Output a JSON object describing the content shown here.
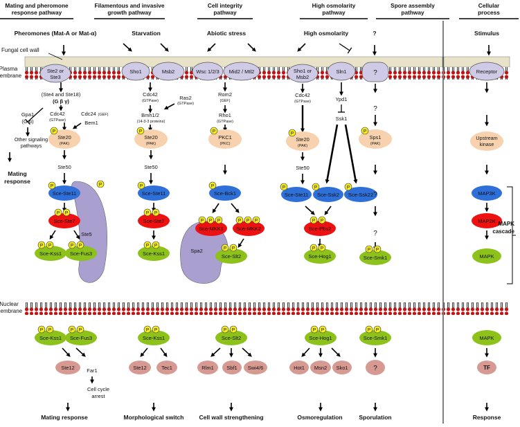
{
  "headers": [
    "Mating and pheromone response pathway",
    "Filamentous and invasive growth pathway",
    "Cell  integrity pathway",
    "High osmolarity pathway",
    "Spore assembly pathway",
    "Cellular process"
  ],
  "stimuli": [
    "Pheromones (Mat-A or Mat-α)",
    "Starvation",
    "Abiotic stress",
    "High osmolarity",
    "?",
    "Stimulus"
  ],
  "left_labels": {
    "cell_wall": "Fungal cell wall",
    "plasma": [
      "Plasma",
      "membrane"
    ],
    "nuclear": [
      "Nuclear",
      "membrane"
    ],
    "mating_resp": [
      "Mating",
      "response"
    ]
  },
  "receptors": {
    "ste2": [
      "Ste2  or",
      "Ste3"
    ],
    "sho1": "Sho1",
    "msb2": "Msb2",
    "wsc": "Wsc 1/2/3",
    "mid2": "Mid2 / Mtl2",
    "sho1b": [
      "Sho1 or",
      "Msb2"
    ],
    "sln1": "Sln1",
    "q": "?",
    "receptor": "Receptor"
  },
  "c1": {
    "ste4": "(Ste4 and Ste18)",
    "gby": "(G β γ)",
    "gpa1": "Gpa1",
    "ga": "(G α)",
    "cdc42": "Cdc42",
    "gtpase": "(GTPase)",
    "cdc24": "Cdc24",
    "gef": "(GEF)",
    "bem1": "Bem1",
    "ste20": "Ste20",
    "pak": "(PAK)",
    "other": [
      "Other signaling",
      "pathways"
    ],
    "ste50": "Ste50",
    "ste11": "Sce-Ste11",
    "ste7": "Sce-Ste7",
    "ste5": "Ste5",
    "kss1": "Sce-Kss1",
    "fus3": "Sce-Fus3",
    "kss1n": "Sce-Kss1",
    "fus3n": "Sce-Fus3",
    "ste12": "Ste12",
    "far1": "Far1",
    "arrest": [
      "Cell cycle",
      "arrest"
    ],
    "out": "Mating response"
  },
  "c2": {
    "cdc42": "Cdc42",
    "gtpase": "(GTPase)",
    "ras2": "Ras2",
    "ras_gtp": "(GTPase)",
    "bmh": "Bmh1/2",
    "bmh_sub": "(14-3-3 proteins)",
    "ste20": "Ste20",
    "pak": "(PAK)",
    "ste50": "Ste50",
    "ste11": "Sce-Ste11",
    "ste7": "Sce-Ste7",
    "kss1": "Sce-Kss1",
    "kss1n": "Sce-Kss1",
    "ste12": "Ste12",
    "tec1": "Tec1",
    "out": "Morphological switch"
  },
  "c3": {
    "rom2": "Rom2",
    "gef": "(GEF)",
    "rho1": "Rho1",
    "gtpase": "(GTPase)",
    "pkc1": "PKC1",
    "pkc": "(PKC)",
    "bck1": "Sce-Bck1",
    "mkk1": "Sce-MKK1",
    "mkk2": "Sce-MKK2",
    "spa2": "Spa2",
    "slt2": "Sce-Slt2",
    "slt2n": "Sce-Slt2",
    "rlm1": "Rlm1",
    "sbf1": "Sbf1",
    "swi": "Swi4/6",
    "out": "Cell wall strengthening"
  },
  "c4": {
    "cdc42": "Cdc42",
    "gtpase": "(GTPase)",
    "ypd1": "Ypd1",
    "ssk1": "Ssk1",
    "ste20": "Ste20",
    "pak": "(PAK)",
    "ste50": "Ste50",
    "ste11": "Sce-Ste11",
    "ssk2": "Sce-Ssk2",
    "ssk22": "Sce-Ssk22",
    "pbs2": "Sce-Pbs2",
    "hog1": "Sce-Hog1",
    "hog1n": "Sce-Hog1",
    "hot1": "Hot1",
    "msn2": "Msn2",
    "sko1": "Sko1",
    "out": "Osmoregulation"
  },
  "c5": {
    "q": "?",
    "sps1": "Sps1",
    "pak": "(PAK)",
    "smk1": "Sce-Smk1",
    "smk1n": "Sce-Smk1",
    "out": "Sporulation"
  },
  "c6": {
    "kinase": [
      "Upstream",
      "kinase"
    ],
    "map3k": "MAP3K",
    "map2k": "MAP2K",
    "mapk": "MAPK",
    "mapkn": "MAPK",
    "tf": "TF",
    "cascade": [
      "MAPK",
      "cascade"
    ],
    "out": "Response"
  },
  "p": "P",
  "colors": {
    "peach": "#f8d2ae",
    "lilac": "#cfcbe6",
    "blue": "#2f6fd8",
    "red": "#ee1111",
    "green": "#8cc21a",
    "rose": "#d79a92",
    "purple": "#a9a0cf",
    "yellow": "#f4ec20",
    "wall": "#e8e3c8"
  }
}
